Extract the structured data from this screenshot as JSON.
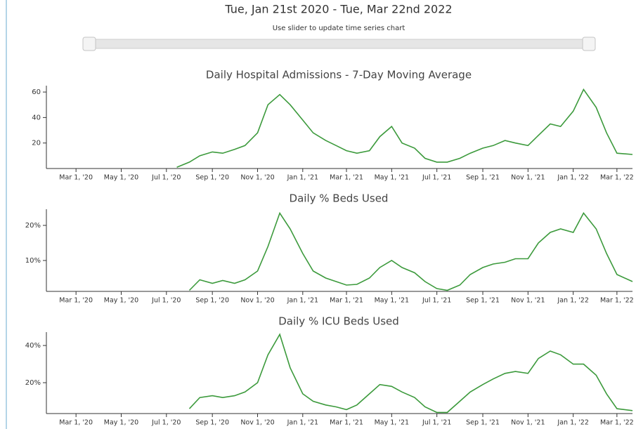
{
  "header": {
    "title": "Tue, Jan 21st 2020 - Tue, Mar 22nd 2022",
    "subtitle": "Use slider to update time series chart"
  },
  "chart_data": [
    {
      "type": "line",
      "title": "Daily Hospital Admissions - 7-Day Moving Average",
      "color": "#3c9a3c",
      "xlim": [
        "2020-01-21",
        "2022-03-22"
      ],
      "xticks": [
        {
          "value": "2020-03-01",
          "label": "Mar 1, '20"
        },
        {
          "value": "2020-05-01",
          "label": "May 1, '20"
        },
        {
          "value": "2020-07-01",
          "label": "Jul 1, '20"
        },
        {
          "value": "2020-09-01",
          "label": "Sep 1, '20"
        },
        {
          "value": "2020-11-01",
          "label": "Nov 1, '20"
        },
        {
          "value": "2021-01-01",
          "label": "Jan 1, '21"
        },
        {
          "value": "2021-03-01",
          "label": "Mar 1, '21"
        },
        {
          "value": "2021-05-01",
          "label": "May 1, '21"
        },
        {
          "value": "2021-07-01",
          "label": "Jul 1, '21"
        },
        {
          "value": "2021-09-01",
          "label": "Sep 1, '21"
        },
        {
          "value": "2021-11-01",
          "label": "Nov 1, '21"
        },
        {
          "value": "2022-01-01",
          "label": "Jan 1, '22"
        },
        {
          "value": "2022-03-01",
          "label": "Mar 1, '22"
        }
      ],
      "ylim": [
        0,
        65
      ],
      "yticks": [
        20,
        40,
        60
      ],
      "x": [
        "2020-07-15",
        "2020-08-01",
        "2020-08-15",
        "2020-09-01",
        "2020-09-15",
        "2020-10-01",
        "2020-10-15",
        "2020-11-01",
        "2020-11-15",
        "2020-12-01",
        "2020-12-15",
        "2021-01-01",
        "2021-01-15",
        "2021-02-01",
        "2021-02-15",
        "2021-03-01",
        "2021-03-15",
        "2021-04-01",
        "2021-04-15",
        "2021-05-01",
        "2021-05-15",
        "2021-06-01",
        "2021-06-15",
        "2021-07-01",
        "2021-07-15",
        "2021-08-01",
        "2021-08-15",
        "2021-09-01",
        "2021-09-15",
        "2021-10-01",
        "2021-10-15",
        "2021-11-01",
        "2021-11-15",
        "2021-12-01",
        "2021-12-15",
        "2022-01-01",
        "2022-01-15",
        "2022-02-01",
        "2022-02-15",
        "2022-03-01",
        "2022-03-22"
      ],
      "values": [
        1,
        5,
        10,
        13,
        12,
        15,
        18,
        28,
        50,
        58,
        50,
        38,
        28,
        22,
        18,
        14,
        12,
        14,
        25,
        33,
        20,
        16,
        8,
        5,
        5,
        8,
        12,
        16,
        18,
        22,
        20,
        18,
        26,
        35,
        33,
        45,
        62,
        48,
        28,
        12,
        11
      ]
    },
    {
      "type": "line",
      "title": "Daily % Beds Used",
      "color": "#3c9a3c",
      "xlim": [
        "2020-01-21",
        "2022-03-22"
      ],
      "xticks": [
        {
          "value": "2020-03-01",
          "label": "Mar 1, '20"
        },
        {
          "value": "2020-05-01",
          "label": "May 1, '20"
        },
        {
          "value": "2020-07-01",
          "label": "Jul 1, '20"
        },
        {
          "value": "2020-09-01",
          "label": "Sep 1, '20"
        },
        {
          "value": "2020-11-01",
          "label": "Nov 1, '20"
        },
        {
          "value": "2021-01-01",
          "label": "Jan 1, '21"
        },
        {
          "value": "2021-03-01",
          "label": "Mar 1, '21"
        },
        {
          "value": "2021-05-01",
          "label": "May 1, '21"
        },
        {
          "value": "2021-07-01",
          "label": "Jul 1, '21"
        },
        {
          "value": "2021-09-01",
          "label": "Sep 1, '21"
        },
        {
          "value": "2021-11-01",
          "label": "Nov 1, '21"
        },
        {
          "value": "2022-01-01",
          "label": "Jan 1, '22"
        },
        {
          "value": "2022-03-01",
          "label": "Mar 1, '22"
        }
      ],
      "ylim": [
        1.2,
        24.6
      ],
      "yticks": [
        {
          "value": 10,
          "label": "10%"
        },
        {
          "value": 20,
          "label": "20%"
        }
      ],
      "x": [
        "2020-08-01",
        "2020-08-15",
        "2020-09-01",
        "2020-09-15",
        "2020-10-01",
        "2020-10-15",
        "2020-11-01",
        "2020-11-15",
        "2020-12-01",
        "2020-12-15",
        "2021-01-01",
        "2021-01-15",
        "2021-02-01",
        "2021-02-15",
        "2021-03-01",
        "2021-03-15",
        "2021-04-01",
        "2021-04-15",
        "2021-05-01",
        "2021-05-15",
        "2021-06-01",
        "2021-06-15",
        "2021-07-01",
        "2021-07-15",
        "2021-08-01",
        "2021-08-15",
        "2021-09-01",
        "2021-09-15",
        "2021-10-01",
        "2021-10-15",
        "2021-11-01",
        "2021-11-15",
        "2021-12-01",
        "2021-12-15",
        "2022-01-01",
        "2022-01-15",
        "2022-02-01",
        "2022-02-15",
        "2022-03-01",
        "2022-03-22"
      ],
      "values": [
        1.5,
        4.5,
        3.5,
        4.3,
        3.5,
        4.5,
        7,
        14,
        23.5,
        19,
        12,
        7,
        5,
        4,
        3,
        3.2,
        5,
        8,
        10,
        8,
        6.5,
        4,
        2,
        1.5,
        3,
        6,
        8,
        9,
        9.5,
        10.5,
        10.5,
        15,
        18,
        19,
        18,
        23.5,
        19,
        12,
        6,
        4
      ]
    },
    {
      "type": "line",
      "title": "Daily % ICU Beds Used",
      "color": "#3c9a3c",
      "xlim": [
        "2020-01-21",
        "2022-03-22"
      ],
      "xticks": [
        {
          "value": "2020-03-01",
          "label": "Mar 1, '20"
        },
        {
          "value": "2020-05-01",
          "label": "May 1, '20"
        },
        {
          "value": "2020-07-01",
          "label": "Jul 1, '20"
        },
        {
          "value": "2020-09-01",
          "label": "Sep 1, '20"
        },
        {
          "value": "2020-11-01",
          "label": "Nov 1, '20"
        },
        {
          "value": "2021-01-01",
          "label": "Jan 1, '21"
        },
        {
          "value": "2021-03-01",
          "label": "Mar 1, '21"
        },
        {
          "value": "2021-05-01",
          "label": "May 1, '21"
        },
        {
          "value": "2021-07-01",
          "label": "Jul 1, '21"
        },
        {
          "value": "2021-09-01",
          "label": "Sep 1, '21"
        },
        {
          "value": "2021-11-01",
          "label": "Nov 1, '21"
        },
        {
          "value": "2022-01-01",
          "label": "Jan 1, '22"
        },
        {
          "value": "2022-03-01",
          "label": "Mar 1, '22"
        }
      ],
      "ylim": [
        3.4,
        47.2
      ],
      "yticks": [
        {
          "value": 20,
          "label": "20%"
        },
        {
          "value": 40,
          "label": "40%"
        }
      ],
      "x": [
        "2020-08-01",
        "2020-08-15",
        "2020-09-01",
        "2020-09-15",
        "2020-10-01",
        "2020-10-15",
        "2020-11-01",
        "2020-11-15",
        "2020-12-01",
        "2020-12-15",
        "2021-01-01",
        "2021-01-15",
        "2021-02-01",
        "2021-02-15",
        "2021-03-01",
        "2021-03-15",
        "2021-04-01",
        "2021-04-15",
        "2021-05-01",
        "2021-05-15",
        "2021-06-01",
        "2021-06-15",
        "2021-07-01",
        "2021-07-15",
        "2021-08-01",
        "2021-08-15",
        "2021-09-01",
        "2021-09-15",
        "2021-10-01",
        "2021-10-15",
        "2021-11-01",
        "2021-11-15",
        "2021-12-01",
        "2021-12-15",
        "2022-01-01",
        "2022-01-15",
        "2022-02-01",
        "2022-02-15",
        "2022-03-01",
        "2022-03-22"
      ],
      "values": [
        6,
        12,
        13,
        12,
        13,
        15,
        20,
        35,
        46,
        28,
        14,
        10,
        8,
        7,
        5.5,
        8,
        14,
        19,
        18,
        15,
        12,
        7,
        4,
        4,
        10,
        15,
        19,
        22,
        25,
        26,
        25,
        33,
        37,
        35,
        30,
        30,
        24,
        14,
        6,
        5
      ]
    }
  ]
}
